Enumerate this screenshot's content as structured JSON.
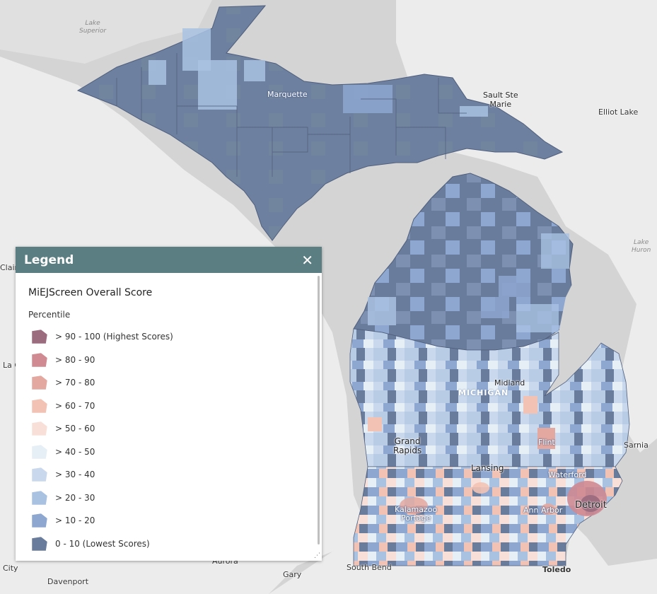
{
  "map": {
    "labels": {
      "lake_superior": "Lake\nSuperior",
      "lake_huron": "Lake\nHuron",
      "elliot_lake": "Elliot Lake",
      "marquette": "Marquette",
      "sault_ste_marie": "Sault Ste\nMarie",
      "michigan": "MICHIGAN",
      "midland": "Midland",
      "grand_rapids": "Grand\nRapids",
      "flint": "Flint",
      "lansing": "Lansing",
      "waterford": "Waterford",
      "detroit": "Detroit",
      "ann_arbor": "Ann Arbor",
      "kalamazoo_portage": "Kalamazoo\nPortage",
      "south_bend": "South Bend",
      "toledo": "Toledo",
      "gary": "Gary",
      "aurora": "Aurora",
      "davenport": "Davenport",
      "city": "City",
      "clair": "Clair",
      "la_c": "La C",
      "sarnia": "Sarnia"
    },
    "colors": {
      "land": "#f0f0f0",
      "water": "#d3d3d3",
      "lowest": "#6a7c9c",
      "low": "#9aaed0"
    }
  },
  "legend": {
    "title": "Legend",
    "close_icon": "close-icon",
    "layer_name": "MiEJScreen Overall Score",
    "field_name": "Percentile",
    "classes": [
      {
        "label": "> 90 - 100 (Highest Scores)",
        "color": "#9b6b7e"
      },
      {
        "label": "> 80 - 90",
        "color": "#cf8a92"
      },
      {
        "label": "> 70 - 80",
        "color": "#e3a8a0"
      },
      {
        "label": "> 60 - 70",
        "color": "#f2c3b4"
      },
      {
        "label": "> 50 - 60",
        "color": "#f8e0d8"
      },
      {
        "label": "> 40 - 50",
        "color": "#e6eef6"
      },
      {
        "label": "> 30 - 40",
        "color": "#c9d8ec"
      },
      {
        "label": "> 20 - 30",
        "color": "#a9c2e2"
      },
      {
        "label": "> 10 - 20",
        "color": "#8da7d0"
      },
      {
        "label": "0 - 10 (Lowest Scores)",
        "color": "#6a7c9c"
      }
    ]
  }
}
